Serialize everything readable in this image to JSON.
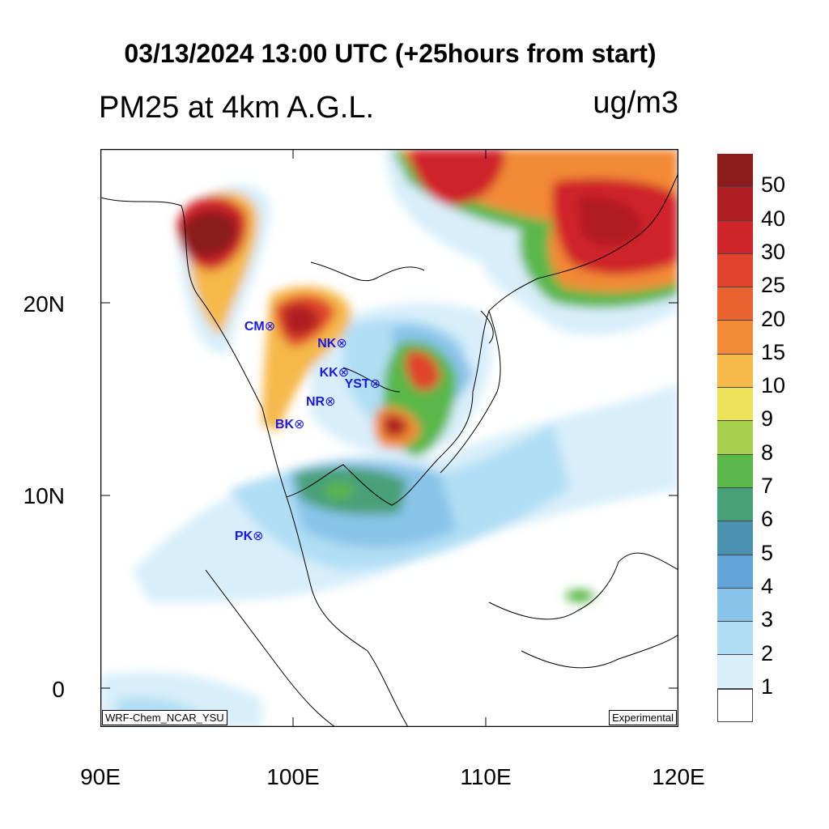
{
  "title": "03/13/2024 13:00 UTC (+25hours from start)",
  "variable_label": "PM25 at 4km A.G.L.",
  "unit_label": "ug/m3",
  "lat_labels": [
    "20N",
    "10N",
    "0"
  ],
  "lon_labels": [
    "90E",
    "100E",
    "110E",
    "120E"
  ],
  "model_tag": "WRF-Chem_NCAR_YSU",
  "status_tag": "Experimental",
  "stations": [
    {
      "name": "CM",
      "lon": 98.9,
      "lat": 18.8
    },
    {
      "name": "NK",
      "lon": 102.7,
      "lat": 17.9
    },
    {
      "name": "KK",
      "lon": 102.8,
      "lat": 16.4
    },
    {
      "name": "YST",
      "lon": 104.1,
      "lat": 15.8
    },
    {
      "name": "NR",
      "lon": 102.1,
      "lat": 14.9
    },
    {
      "name": "BK",
      "lon": 100.5,
      "lat": 13.7
    },
    {
      "name": "PK",
      "lon": 98.4,
      "lat": 7.9
    }
  ],
  "station_marker": "⊗",
  "colorbar": {
    "labels": [
      "50",
      "40",
      "30",
      "25",
      "20",
      "15",
      "10",
      "9",
      "8",
      "7",
      "6",
      "5",
      "4",
      "3",
      "2",
      "1"
    ],
    "colors": [
      "#8b1a1a",
      "#b01e23",
      "#d0242a",
      "#e0442c",
      "#ea6330",
      "#f28a36",
      "#f5b84a",
      "#ece25a",
      "#a8cf4e",
      "#5ab74a",
      "#48a078",
      "#4a92b0",
      "#62a4d8",
      "#8ac4ea",
      "#b0def4",
      "#d8eefa",
      "#ffffff"
    ]
  },
  "map_extent": {
    "lon": [
      90,
      120
    ],
    "lat": [
      -2,
      28
    ]
  }
}
